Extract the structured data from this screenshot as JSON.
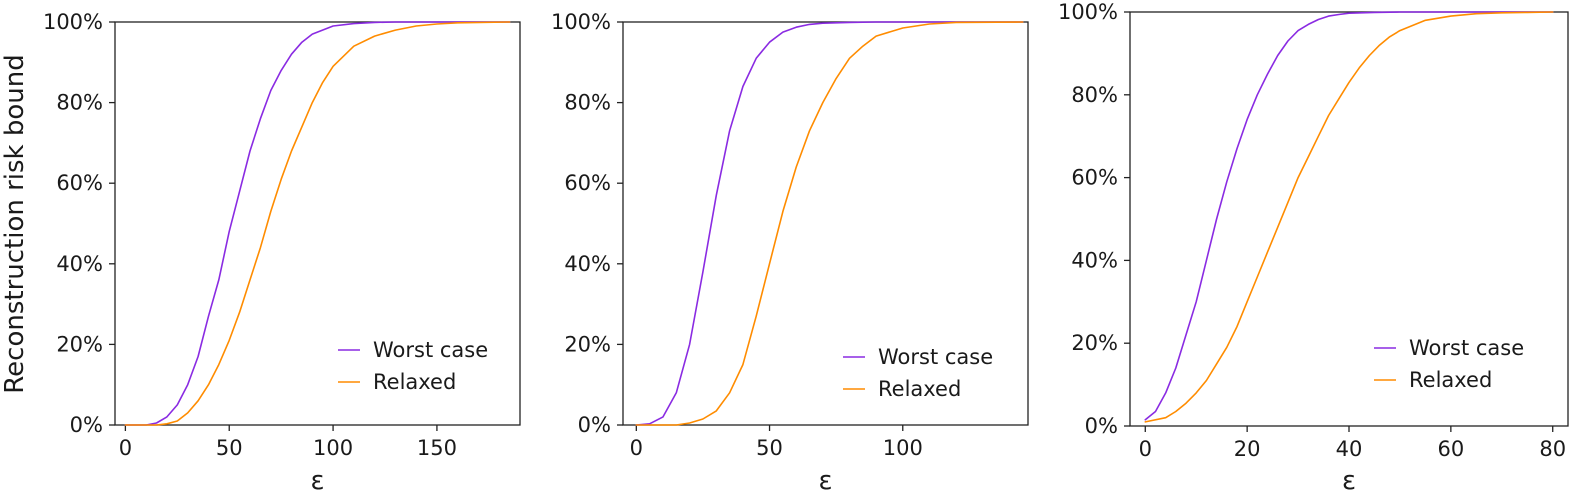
{
  "figure": {
    "ylabel": "Reconstruction risk bound"
  },
  "chart_data": [
    {
      "type": "line",
      "xlabel": "ε",
      "ylabel": "Reconstruction risk bound",
      "xlim": [
        -5,
        190
      ],
      "ylim": [
        0,
        100
      ],
      "xticks": [
        0,
        50,
        100,
        150
      ],
      "yticks": [
        0,
        20,
        40,
        60,
        80,
        100
      ],
      "ytick_labels": [
        "0%",
        "20%",
        "40%",
        "60%",
        "80%",
        "100%"
      ],
      "grid": false,
      "legend_position": "lower-right",
      "series": [
        {
          "name": "Worst case",
          "color": "#8a2be2",
          "x": [
            0,
            10,
            15,
            20,
            25,
            30,
            35,
            40,
            45,
            50,
            55,
            60,
            65,
            70,
            75,
            80,
            85,
            90,
            100,
            110,
            120,
            130,
            150,
            185
          ],
          "y": [
            0,
            0,
            0.5,
            2,
            5,
            10,
            17,
            27,
            36,
            48,
            58,
            68,
            76,
            83,
            88,
            92,
            95,
            97,
            99,
            99.6,
            99.9,
            100,
            100,
            100
          ]
        },
        {
          "name": "Relaxed",
          "color": "#ff8c00",
          "x": [
            0,
            15,
            20,
            25,
            30,
            35,
            40,
            45,
            50,
            55,
            60,
            65,
            70,
            75,
            80,
            85,
            90,
            95,
            100,
            110,
            120,
            130,
            140,
            150,
            160,
            185
          ],
          "y": [
            0,
            0,
            0.3,
            1,
            3,
            6,
            10,
            15,
            21,
            28,
            36,
            44,
            53,
            61,
            68,
            74,
            80,
            85,
            89,
            94,
            96.5,
            98,
            99,
            99.5,
            99.8,
            100
          ]
        }
      ]
    },
    {
      "type": "line",
      "xlabel": "ε",
      "xlim": [
        -5,
        147
      ],
      "ylim": [
        0,
        100
      ],
      "xticks": [
        0,
        50,
        100
      ],
      "yticks": [
        0,
        20,
        40,
        60,
        80,
        100
      ],
      "ytick_labels": [
        "0%",
        "20%",
        "40%",
        "60%",
        "80%",
        "100%"
      ],
      "grid": false,
      "legend_position": "lower-right",
      "series": [
        {
          "name": "Worst case",
          "color": "#8a2be2",
          "x": [
            0,
            5,
            10,
            15,
            20,
            25,
            30,
            35,
            40,
            45,
            50,
            55,
            60,
            65,
            70,
            80,
            90,
            100,
            145
          ],
          "y": [
            0,
            0.3,
            2,
            8,
            20,
            38,
            57,
            73,
            84,
            91,
            95,
            97.5,
            98.7,
            99.4,
            99.7,
            99.9,
            100,
            100,
            100
          ]
        },
        {
          "name": "Relaxed",
          "color": "#ff8c00",
          "x": [
            0,
            15,
            20,
            25,
            30,
            35,
            40,
            45,
            50,
            55,
            60,
            65,
            70,
            75,
            80,
            85,
            90,
            100,
            110,
            120,
            145
          ],
          "y": [
            0,
            0,
            0.5,
            1.5,
            3.5,
            8,
            15,
            27,
            40,
            53,
            64,
            73,
            80,
            86,
            91,
            94,
            96.5,
            98.5,
            99.5,
            99.9,
            100
          ]
        }
      ]
    },
    {
      "type": "line",
      "xlabel": "ε",
      "xlim": [
        -3,
        83
      ],
      "ylim": [
        0,
        100
      ],
      "xticks": [
        0,
        20,
        40,
        60,
        80
      ],
      "yticks": [
        0,
        20,
        40,
        60,
        80,
        100
      ],
      "ytick_labels": [
        "0%",
        "20%",
        "40%",
        "60%",
        "80%",
        "100%"
      ],
      "grid": false,
      "legend_position": "lower-right",
      "series": [
        {
          "name": "Worst case",
          "color": "#8a2be2",
          "x": [
            0,
            2,
            4,
            6,
            8,
            10,
            12,
            14,
            16,
            18,
            20,
            22,
            24,
            26,
            28,
            30,
            32,
            34,
            36,
            38,
            40,
            45,
            50,
            60,
            80
          ],
          "y": [
            1.5,
            3.5,
            8,
            14,
            22,
            30,
            40,
            50,
            59,
            67,
            74,
            80,
            85,
            89.5,
            93,
            95.5,
            97,
            98.2,
            99,
            99.4,
            99.7,
            99.9,
            100,
            100,
            100
          ]
        },
        {
          "name": "Relaxed",
          "color": "#ff8c00",
          "x": [
            0,
            4,
            6,
            8,
            10,
            12,
            14,
            16,
            18,
            20,
            22,
            24,
            26,
            28,
            30,
            32,
            34,
            36,
            38,
            40,
            42,
            44,
            46,
            48,
            50,
            55,
            60,
            65,
            70,
            75,
            80
          ],
          "y": [
            1,
            2,
            3.5,
            5.5,
            8,
            11,
            15,
            19,
            24,
            30,
            36,
            42,
            48,
            54,
            60,
            65,
            70,
            75,
            79,
            83,
            86.5,
            89.5,
            92,
            94,
            95.5,
            98,
            99,
            99.6,
            99.8,
            99.9,
            100
          ]
        }
      ]
    }
  ]
}
